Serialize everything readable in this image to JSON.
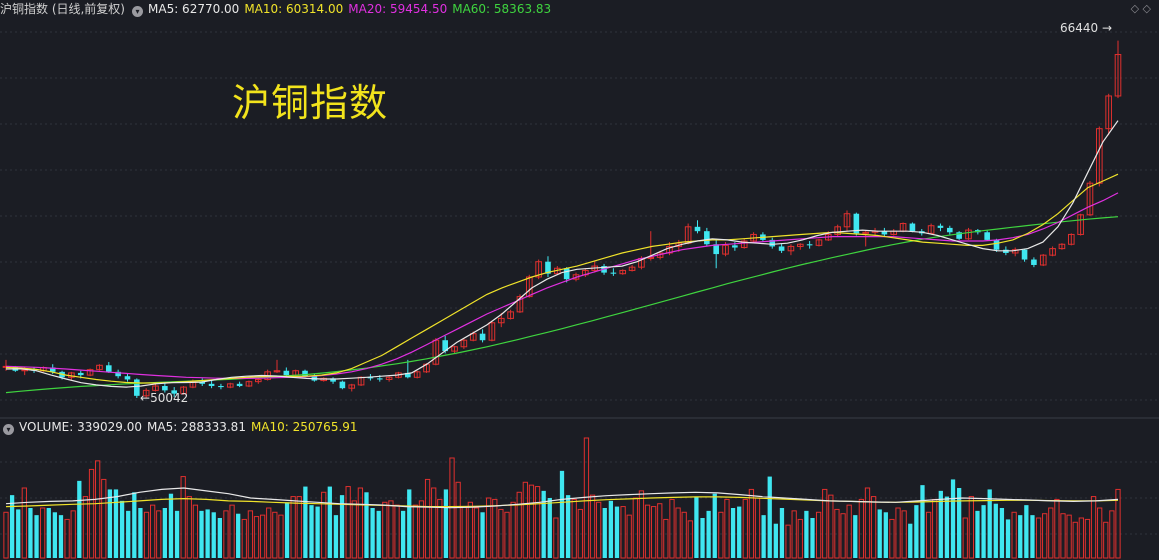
{
  "header": {
    "title": "沪铜指数 (日线,前复权)",
    "ma5": "MA5: 62770.00",
    "ma10": "MA10: 60314.00",
    "ma20": "MA20: 59454.50",
    "ma60": "MA60: 58363.83"
  },
  "volume_header": {
    "label": "VOLUME: 339029.00",
    "ma5": "MA5: 288333.81",
    "ma10": "MA10: 250765.91"
  },
  "watermark": "沪铜指数",
  "annotations": {
    "high": "66440",
    "low": "50042"
  },
  "colors": {
    "up": "#e0302e",
    "down": "#3fe6f0",
    "ma5": "#e8e8e8",
    "ma10": "#f0e32a",
    "ma20": "#e030e0",
    "ma60": "#3fd43f",
    "background": "#1b1d24"
  },
  "chart_data": {
    "type": "candlestick",
    "price_range": [
      49500,
      67200
    ],
    "volume_range": [
      0,
      420000
    ],
    "grid": "horizontal dashed",
    "candles": [
      [
        51500,
        51800,
        51300,
        51500
      ],
      [
        51480,
        51520,
        51250,
        51300
      ],
      [
        51300,
        51480,
        51100,
        51350
      ],
      [
        51350,
        51450,
        51200,
        51300
      ],
      [
        51300,
        51500,
        51250,
        51450
      ],
      [
        51450,
        51600,
        51150,
        51250
      ],
      [
        51250,
        51300,
        50900,
        51000
      ],
      [
        51000,
        51250,
        50850,
        51200
      ],
      [
        51200,
        51300,
        50950,
        51100
      ],
      [
        51100,
        51400,
        51050,
        51350
      ],
      [
        51350,
        51600,
        51300,
        51550
      ],
      [
        51550,
        51700,
        51200,
        51250
      ],
      [
        51250,
        51350,
        50950,
        51050
      ],
      [
        51050,
        51150,
        50800,
        50900
      ],
      [
        50900,
        50950,
        50050,
        50150
      ],
      [
        50150,
        50500,
        50042,
        50400
      ],
      [
        50400,
        50700,
        50350,
        50600
      ],
      [
        50600,
        50750,
        50300,
        50400
      ],
      [
        50400,
        50550,
        50100,
        50250
      ],
      [
        50250,
        50600,
        50200,
        50550
      ],
      [
        50550,
        50900,
        50500,
        50800
      ],
      [
        50800,
        50950,
        50600,
        50700
      ],
      [
        50700,
        50850,
        50500,
        50600
      ],
      [
        50600,
        50700,
        50450,
        50550
      ],
      [
        50550,
        50750,
        50500,
        50700
      ],
      [
        50700,
        50800,
        50550,
        50600
      ],
      [
        50600,
        50850,
        50550,
        50800
      ],
      [
        50800,
        51000,
        50700,
        50900
      ],
      [
        50900,
        51350,
        50850,
        51250
      ],
      [
        51250,
        51800,
        51200,
        51300
      ],
      [
        51300,
        51450,
        51000,
        51100
      ],
      [
        51100,
        51350,
        51050,
        51300
      ],
      [
        51300,
        51350,
        51000,
        51050
      ],
      [
        51050,
        51150,
        50800,
        50850
      ],
      [
        50850,
        51000,
        50800,
        50950
      ],
      [
        50950,
        51000,
        50700,
        50800
      ],
      [
        50800,
        50850,
        50450,
        50500
      ],
      [
        50500,
        50700,
        50350,
        50650
      ],
      [
        50650,
        51050,
        50600,
        51000
      ],
      [
        51000,
        51150,
        50850,
        50950
      ],
      [
        50950,
        51100,
        50800,
        50900
      ],
      [
        50900,
        51050,
        50800,
        51000
      ],
      [
        51000,
        51250,
        50950,
        51200
      ],
      [
        51200,
        51800,
        50950,
        51000
      ],
      [
        51000,
        51300,
        50950,
        51250
      ],
      [
        51250,
        51650,
        51200,
        51600
      ],
      [
        51600,
        52800,
        51550,
        52700
      ],
      [
        52700,
        52900,
        52100,
        52200
      ],
      [
        52200,
        52450,
        52100,
        52400
      ],
      [
        52400,
        52800,
        52300,
        52700
      ],
      [
        52700,
        53100,
        52650,
        53000
      ],
      [
        53000,
        53200,
        52600,
        52700
      ],
      [
        52700,
        53600,
        52650,
        53500
      ],
      [
        53500,
        53950,
        53300,
        53700
      ],
      [
        53700,
        54100,
        53650,
        54000
      ],
      [
        54000,
        54800,
        53950,
        54700
      ],
      [
        54700,
        55700,
        54650,
        55600
      ],
      [
        55600,
        56400,
        55500,
        56300
      ],
      [
        56300,
        56550,
        55600,
        55750
      ],
      [
        55750,
        56100,
        55700,
        56000
      ],
      [
        56000,
        56050,
        55350,
        55500
      ],
      [
        55500,
        55800,
        55400,
        55700
      ],
      [
        55700,
        56000,
        55600,
        55900
      ],
      [
        55900,
        56350,
        55800,
        56100
      ],
      [
        56100,
        56200,
        55700,
        55800
      ],
      [
        55800,
        56000,
        55650,
        55750
      ],
      [
        55750,
        55950,
        55700,
        55900
      ],
      [
        55900,
        56150,
        55850,
        56050
      ],
      [
        56050,
        56550,
        55950,
        56450
      ],
      [
        56450,
        57700,
        56350,
        56500
      ],
      [
        56500,
        56800,
        56400,
        56700
      ],
      [
        56700,
        57200,
        56600,
        57000
      ],
      [
        57000,
        57300,
        56750,
        57150
      ],
      [
        57150,
        58050,
        57100,
        57900
      ],
      [
        57900,
        58200,
        57600,
        57700
      ],
      [
        57700,
        57850,
        57000,
        57100
      ],
      [
        57100,
        57350,
        56000,
        56650
      ],
      [
        56650,
        57200,
        56550,
        57050
      ],
      [
        57050,
        57200,
        56800,
        56950
      ],
      [
        56950,
        57350,
        56900,
        57250
      ],
      [
        57250,
        57650,
        57200,
        57550
      ],
      [
        57550,
        57650,
        57200,
        57300
      ],
      [
        57300,
        57400,
        56900,
        57000
      ],
      [
        57000,
        57150,
        56700,
        56800
      ],
      [
        56800,
        57100,
        56600,
        57000
      ],
      [
        57000,
        57150,
        56850,
        57100
      ],
      [
        57100,
        57250,
        56900,
        57050
      ],
      [
        57050,
        57350,
        57000,
        57300
      ],
      [
        57300,
        57700,
        57250,
        57550
      ],
      [
        57550,
        58000,
        57450,
        57900
      ],
      [
        57900,
        58650,
        57700,
        58500
      ],
      [
        58500,
        58550,
        57500,
        57600
      ],
      [
        57600,
        57750,
        57000,
        57650
      ],
      [
        57650,
        57850,
        57500,
        57700
      ],
      [
        57700,
        57850,
        57450,
        57550
      ],
      [
        57550,
        57800,
        57500,
        57700
      ],
      [
        57700,
        58100,
        57650,
        58050
      ],
      [
        58050,
        58100,
        57650,
        57700
      ],
      [
        57700,
        57800,
        57500,
        57600
      ],
      [
        57600,
        58050,
        57550,
        57950
      ],
      [
        57950,
        58050,
        57700,
        57850
      ],
      [
        57850,
        57950,
        57550,
        57650
      ],
      [
        57650,
        57700,
        57300,
        57350
      ],
      [
        57350,
        57850,
        57300,
        57750
      ],
      [
        57750,
        57800,
        57550,
        57650
      ],
      [
        57650,
        57750,
        57250,
        57300
      ],
      [
        57300,
        57350,
        56750,
        56850
      ],
      [
        56850,
        57000,
        56600,
        56700
      ],
      [
        56700,
        56950,
        56550,
        56850
      ],
      [
        56850,
        56900,
        56300,
        56400
      ],
      [
        56400,
        56500,
        56050,
        56150
      ],
      [
        56150,
        56650,
        56100,
        56600
      ],
      [
        56600,
        57000,
        56550,
        56900
      ],
      [
        56900,
        57150,
        56850,
        57100
      ],
      [
        57100,
        57600,
        57050,
        57550
      ],
      [
        57550,
        58500,
        57500,
        58450
      ],
      [
        58450,
        60000,
        58400,
        59900
      ],
      [
        59900,
        62500,
        59750,
        62400
      ],
      [
        62400,
        64000,
        62100,
        63900
      ],
      [
        63900,
        66440,
        63800,
        65800
      ]
    ],
    "ma5": [
      51380,
      51390,
      51300,
      51100,
      50920,
      50750,
      50650,
      50580,
      50550,
      50600,
      50700,
      50750,
      50760,
      50780,
      50900,
      51000,
      51050,
      51080,
      51060,
      51000,
      50950,
      50920,
      50920,
      50960,
      51000,
      51050,
      51100,
      51200,
      51600,
      52100,
      52600,
      53000,
      53400,
      53900,
      54500,
      55100,
      55500,
      55800,
      55950,
      56000,
      56050,
      56100,
      56300,
      56600,
      56900,
      57100,
      57250,
      57350,
      57300,
      57200,
      57150,
      57100,
      57150,
      57300,
      57500,
      57650,
      57700,
      57750,
      57700,
      57700,
      57700,
      57650,
      57500,
      57300,
      57100,
      56900,
      56800,
      56800,
      56900,
      57200,
      57900,
      59000,
      60400,
      61800,
      62770
    ],
    "ma10": [
      51450,
      51420,
      51360,
      51250,
      51100,
      51000,
      50900,
      50820,
      50760,
      50740,
      50740,
      50760,
      50800,
      50850,
      50900,
      50950,
      51000,
      51030,
      51050,
      51040,
      51050,
      51100,
      51200,
      51400,
      51700,
      52000,
      52400,
      52800,
      53200,
      53600,
      54000,
      54400,
      54800,
      55100,
      55350,
      55600,
      55800,
      55950,
      56100,
      56300,
      56500,
      56700,
      56850,
      57000,
      57100,
      57200,
      57250,
      57300,
      57300,
      57350,
      57400,
      57450,
      57500,
      57550,
      57600,
      57650,
      57600,
      57550,
      57500,
      57400,
      57300,
      57200,
      57150,
      57100,
      57050,
      57050,
      57150,
      57300,
      57600,
      58000,
      58500,
      59100,
      59700,
      60000,
      60314
    ],
    "ma20": [
      51500,
      51480,
      51460,
      51420,
      51380,
      51330,
      51280,
      51230,
      51180,
      51130,
      51080,
      51040,
      51000,
      50980,
      50960,
      50950,
      50950,
      50960,
      50980,
      51000,
      51030,
      51080,
      51150,
      51250,
      51400,
      51600,
      51850,
      52150,
      52500,
      52850,
      53200,
      53550,
      53900,
      54200,
      54500,
      54800,
      55100,
      55350,
      55600,
      55800,
      56000,
      56200,
      56400,
      56550,
      56700,
      56850,
      56950,
      57050,
      57100,
      57150,
      57200,
      57250,
      57300,
      57350,
      57400,
      57450,
      57450,
      57450,
      57450,
      57450,
      57400,
      57350,
      57300,
      57250,
      57250,
      57250,
      57300,
      57400,
      57550,
      57800,
      58100,
      58450,
      58800,
      59100,
      59454
    ],
    "ma60": [
      50300,
      50360,
      50420,
      50480,
      50530,
      50580,
      50620,
      50660,
      50700,
      50730,
      50760,
      50790,
      50820,
      50850,
      50880,
      50910,
      50950,
      50990,
      51030,
      51080,
      51130,
      51190,
      51260,
      51340,
      51420,
      51520,
      51620,
      51730,
      51850,
      51980,
      52110,
      52250,
      52400,
      52560,
      52720,
      52890,
      53060,
      53230,
      53410,
      53590,
      53780,
      53960,
      54150,
      54340,
      54530,
      54720,
      54910,
      55100,
      55290,
      55470,
      55650,
      55830,
      56000,
      56170,
      56330,
      56490,
      56640,
      56790,
      56940,
      57080,
      57210,
      57330,
      57440,
      57540,
      57630,
      57720,
      57800,
      57880,
      57960,
      58040,
      58110,
      58180,
      58250,
      58310,
      58363
    ],
    "volume": [
      160,
      220,
      170,
      245,
      175,
      150,
      175,
      175,
      160,
      150,
      135,
      165,
      270,
      215,
      310,
      340,
      275,
      240,
      240,
      200,
      165,
      230,
      175,
      160,
      185,
      165,
      175,
      225,
      165,
      285,
      215,
      185,
      165,
      170,
      160,
      140,
      165,
      185,
      155,
      135,
      165,
      145,
      150,
      175,
      160,
      150,
      195,
      215,
      215,
      250,
      185,
      180,
      230,
      250,
      150,
      220,
      250,
      200,
      245,
      230,
      175,
      165,
      195,
      200,
      185,
      165,
      240,
      185,
      200,
      275,
      245,
      205,
      240,
      350,
      265,
      180,
      195,
      175,
      160,
      210,
      205,
      170,
      160,
      195,
      230,
      265,
      255,
      250,
      235,
      210,
      140,
      305,
      220,
      205,
      170,
      420,
      220,
      195,
      175,
      200,
      180,
      180,
      150,
      210,
      235,
      185,
      180,
      190,
      135,
      205,
      175,
      160,
      130,
      215,
      140,
      165,
      225,
      160,
      205,
      175,
      180,
      205,
      240,
      210,
      150,
      285,
      120,
      175,
      115,
      165,
      135,
      165,
      140,
      160,
      240,
      220,
      170,
      155,
      185,
      150,
      205,
      245,
      215,
      170,
      160,
      135,
      175,
      165,
      120,
      185,
      255,
      160,
      205,
      235,
      215,
      275,
      245,
      140,
      215,
      165,
      185,
      240,
      190,
      175,
      135,
      160,
      150,
      185,
      150,
      140,
      155,
      175,
      205,
      155,
      150,
      125,
      140,
      135,
      215,
      175,
      125,
      165,
      240
    ],
    "volume_ma5": [
      190,
      195,
      198,
      200,
      205,
      215,
      230,
      240,
      245,
      235,
      225,
      210,
      205,
      200,
      195,
      190,
      188,
      185,
      180,
      178,
      176,
      178,
      182,
      188,
      195,
      205,
      212,
      218,
      222,
      225,
      228,
      230,
      228,
      222,
      215,
      210,
      205,
      200,
      198,
      196,
      195,
      200,
      205,
      210,
      208,
      205,
      203,
      200,
      198,
      200,
      205
    ],
    "volume_ma10": [
      180,
      182,
      185,
      188,
      190,
      195,
      200,
      205,
      208,
      205,
      200,
      198,
      195,
      192,
      190,
      188,
      186,
      184,
      182,
      180,
      180,
      181,
      183,
      186,
      190,
      195,
      200,
      204,
      207,
      210,
      212,
      214,
      214,
      212,
      209,
      206,
      203,
      200,
      198,
      196,
      195,
      196,
      198,
      200,
      201,
      202,
      202,
      201,
      200,
      200,
      202
    ]
  }
}
